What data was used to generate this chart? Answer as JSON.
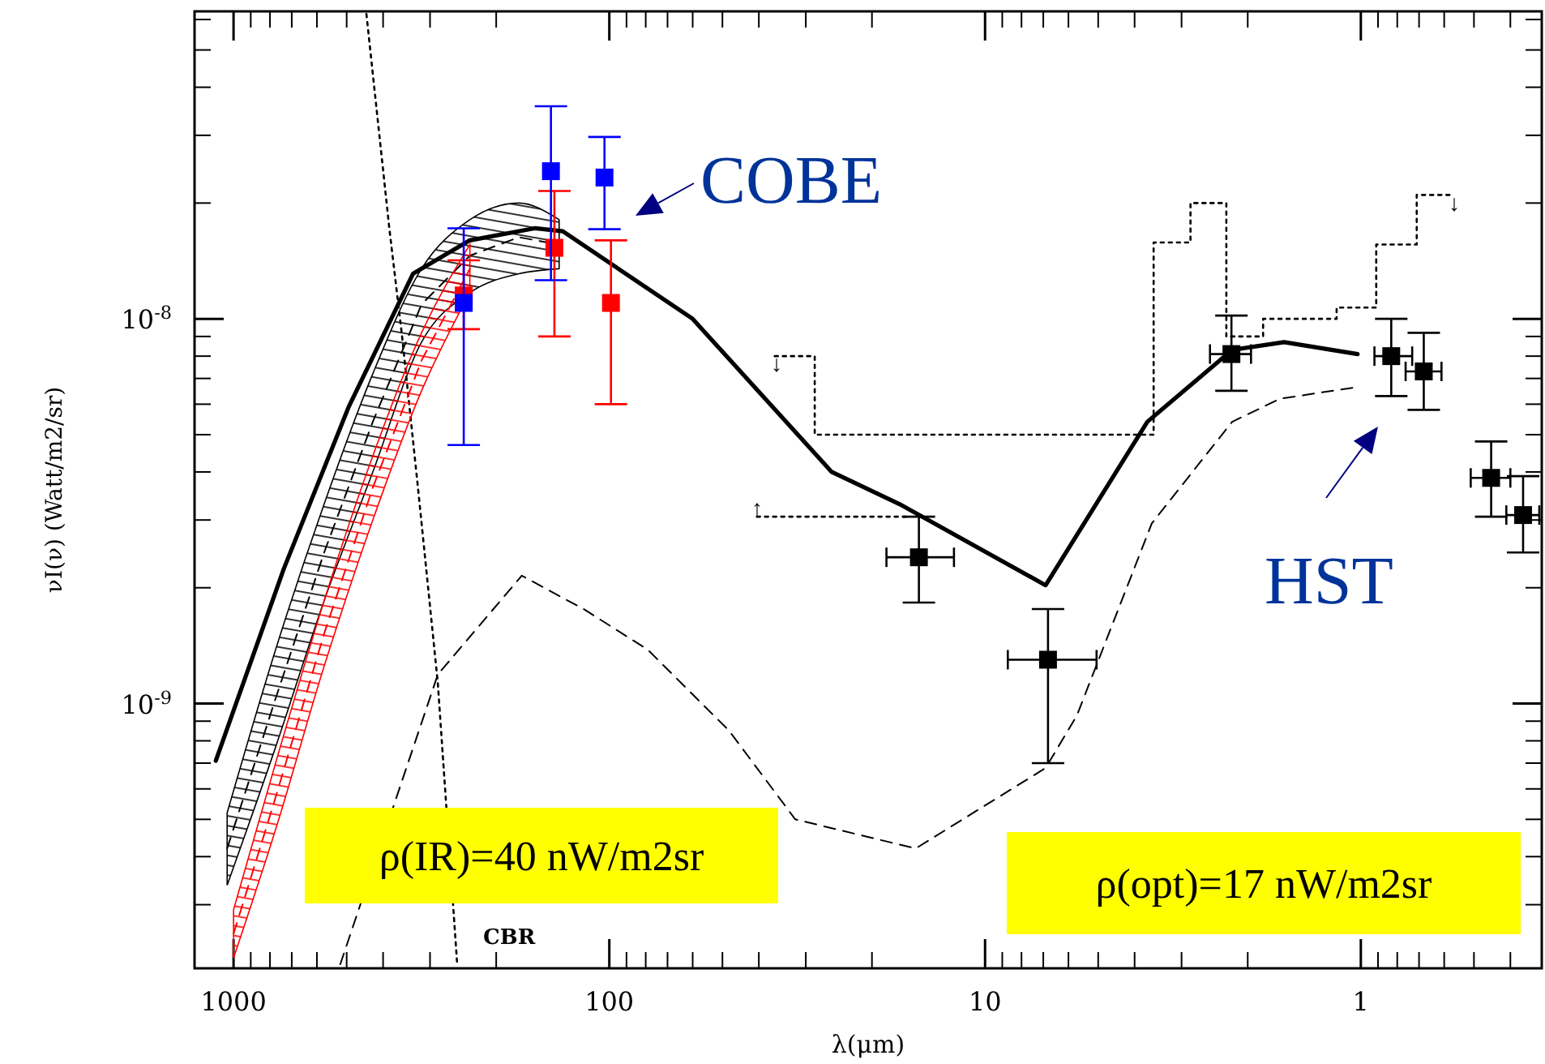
{
  "chart_data": {
    "type": "line",
    "xlabel": "λ(μm)",
    "ylabel": "νI(ν) (Watt/m2/sr)",
    "log": "xy",
    "xlim": [
      1270,
      0.33
    ],
    "ylim": [
      2.05e-10,
      6.3e-08
    ],
    "xticks": [
      1000,
      {
        "value": 900,
        "label": null
      },
      {
        "value": 800,
        "label": null
      },
      {
        "value": 700,
        "label": null
      },
      {
        "value": 600,
        "label": null
      },
      {
        "value": 500,
        "label": null
      },
      {
        "value": 400,
        "label": null
      },
      {
        "value": 300,
        "label": null
      },
      {
        "value": 200,
        "label": null
      },
      100,
      {
        "value": 90,
        "label": null
      },
      {
        "value": 80,
        "label": null
      },
      {
        "value": 70,
        "label": null
      },
      {
        "value": 60,
        "label": null
      },
      {
        "value": 50,
        "label": null
      },
      {
        "value": 40,
        "label": null
      },
      {
        "value": 30,
        "label": null
      },
      {
        "value": 20,
        "label": null
      },
      10,
      {
        "value": 9,
        "label": null
      },
      {
        "value": 8,
        "label": null
      },
      {
        "value": 7,
        "label": null
      },
      {
        "value": 6,
        "label": null
      },
      {
        "value": 5,
        "label": null
      },
      {
        "value": 4,
        "label": null
      },
      {
        "value": 3,
        "label": null
      },
      {
        "value": 2,
        "label": null
      },
      1,
      {
        "value": 0.9,
        "label": null
      },
      {
        "value": 0.8,
        "label": null
      },
      {
        "value": 0.7,
        "label": null
      },
      {
        "value": 0.6,
        "label": null
      },
      {
        "value": 0.5,
        "label": null
      },
      {
        "value": 0.4,
        "label": null
      }
    ],
    "yticks": [
      {
        "value": 3e-10,
        "label": null
      },
      {
        "value": 4e-10,
        "label": null
      },
      {
        "value": 5e-10,
        "label": null
      },
      {
        "value": 6e-10,
        "label": null
      },
      {
        "value": 7e-10,
        "label": null
      },
      {
        "value": 8e-10,
        "label": null
      },
      {
        "value": 9e-10,
        "label": null
      },
      {
        "value": 1e-09,
        "label": "10$^{-9}$"
      },
      {
        "value": 2e-09,
        "label": null
      },
      {
        "value": 3e-09,
        "label": null
      },
      {
        "value": 4e-09,
        "label": null
      },
      {
        "value": 5e-09,
        "label": null
      },
      {
        "value": 6e-09,
        "label": null
      },
      {
        "value": 7e-09,
        "label": null
      },
      {
        "value": 8e-09,
        "label": null
      },
      {
        "value": 9e-09,
        "label": null
      },
      {
        "value": 1e-08,
        "label": "10$^{-8}$"
      },
      {
        "value": 2e-08,
        "label": null
      },
      {
        "value": 3e-08,
        "label": null
      },
      {
        "value": 4e-08,
        "label": null
      },
      {
        "value": 5e-08,
        "label": null
      },
      {
        "value": 6e-08,
        "label": null
      }
    ],
    "series": [
      {
        "type": "line",
        "color": "#000000",
        "line_style": "solid",
        "x": [
          1115,
          735,
          494,
          333,
          235,
          158,
          133,
          60,
          25.6,
          16.9,
          6.9,
          3.7,
          2.2,
          1.6,
          1.02
        ],
        "values": [
          7.1e-10,
          2.24e-09,
          5.9e-09,
          1.31e-08,
          1.6e-08,
          1.72e-08,
          1.69e-08,
          1e-08,
          4e-09,
          3.3e-09,
          2.03e-09,
          5.4e-09,
          8.3e-09,
          8.7e-09,
          8.1e-09
        ]
      },
      {
        "type": "line",
        "color": "#000000",
        "line_style": "dashed",
        "x": [
          520,
          385,
          286,
          171,
          117,
          79,
          48,
          32,
          15.3,
          6.9,
          5.7,
          3.6,
          2.2,
          1.64,
          1.02
        ],
        "values": [
          2.1e-10,
          null,
          1.19e-09,
          2.15e-09,
          1.76e-09,
          1.38e-09,
          8.5e-10,
          5e-10,
          4.2e-10,
          6.8e-10,
          9.3e-10,
          2.94e-09,
          5.4e-09,
          6.2e-09,
          6.65e-09
        ]
      },
      {
        "type": "line",
        "color": "#000000",
        "line_style": "dotted",
        "x": [
          443,
          385,
          356,
          323,
          286,
          254
        ],
        "values": [
          6.2e-08,
          1.72e-08,
          9e-09,
          3.64e-09,
          1.13e-09,
          2.1e-10
        ]
      },
      {
        "type": "step",
        "color": "#000000",
        "line_style": "dotted",
        "x": [
          36.3,
          28.4,
          3.56,
          2.84,
          2.28,
          1.82,
          1.16,
          0.91,
          0.71,
          0.57
        ],
        "values": [
          8e-09,
          5e-09,
          1.58e-08,
          2e-08,
          9e-09,
          1e-08,
          1.07e-08,
          1.56e-08,
          2.1e-08,
          2.1e-08
        ]
      },
      {
        "type": "line",
        "color": "#000000",
        "line_style": "dotted",
        "x": [
          40.5,
          16.1
        ],
        "values": [
          3.06e-09,
          3.06e-09
        ]
      },
      {
        "type": "line",
        "color": "#000000",
        "line_style": "dashed",
        "x": [
          1040,
          773,
          574,
          426,
          316,
          235,
          174,
          136
        ],
        "values": [
          4.2e-10,
          1.03e-09,
          2.47e-09,
          5.4e-09,
          1.09e-08,
          1.46e-08,
          1.63e-08,
          1.56e-08
        ],
        "lower": [
          3.37e-10,
          7.7e-10,
          1.85e-09,
          4e-09,
          8.7e-09,
          1.17e-08,
          1.31e-08,
          1.35e-08
        ],
        "upper": [
          5.2e-10,
          1.38e-09,
          3.3e-09,
          7.2e-09,
          1.35e-08,
          1.81e-08,
          2e-08,
          1.81e-08
        ]
      },
      {
        "type": "line",
        "color": "#ff0000",
        "line_style": "dashed",
        "x": [
          1000,
          773,
          574,
          426,
          316,
          235
        ],
        "values": [
          2.52e-10,
          5.7e-10,
          1.52e-09,
          3.64e-09,
          7.8e-09,
          1.35e-08
        ],
        "lower": [
          2.18e-10,
          4.7e-10,
          1.25e-09,
          3e-09,
          6.5e-09,
          1.17e-08
        ],
        "upper": [
          2.91e-10,
          7e-10,
          1.85e-09,
          4.4e-09,
          9.2e-09,
          1.56e-08
        ]
      },
      {
        "type": "scatter",
        "color": "#0000ff",
        "marker": "square",
        "x": [
          244,
          143,
          103
        ],
        "values": [
          1.1e-08,
          2.42e-08,
          2.33e-08
        ],
        "errors": [
          [
            4.7e-09,
            1.72e-08
          ],
          [
            1.26e-08,
            3.57e-08
          ],
          [
            1.71e-08,
            2.97e-08
          ]
        ]
      },
      {
        "type": "scatter",
        "color": "#ff0000",
        "marker": "square",
        "x": [
          244,
          140,
          99
        ],
        "values": [
          1.15e-08,
          1.53e-08,
          1.1e-08
        ],
        "errors": [
          [
            9.4e-09,
            1.42e-08
          ],
          [
            9e-09,
            2.15e-08
          ],
          [
            6e-09,
            1.6e-08
          ]
        ]
      },
      {
        "type": "scatter",
        "color": "#000000",
        "marker": "square",
        "x": [
          15.0,
          6.8
        ],
        "values": [
          2.4e-09,
          1.3e-09
        ],
        "errors": [
          [
            1.83e-09,
            3.06e-09
          ],
          [
            7e-10,
            1.76e-09
          ]
        ],
        "xerrors": [
          [
            18.3,
            12.1
          ],
          [
            8.7,
            5.05
          ]
        ]
      },
      {
        "type": "scatter",
        "color": "#000000",
        "marker": "square",
        "x": [
          2.21,
          0.83,
          0.68,
          0.45,
          0.37
        ],
        "values": [
          8.1e-09,
          8e-09,
          7.3e-09,
          3.86e-09,
          3.09e-09
        ],
        "errors": [
          [
            6.5e-09,
            1.02e-08
          ],
          [
            6.3e-09,
            1e-08
          ],
          [
            5.8e-09,
            9.2e-09
          ],
          [
            3.06e-09,
            4.8e-09
          ],
          [
            2.47e-09,
            3.9e-09
          ]
        ],
        "xerrors": [
          [
            2.52,
            1.96
          ],
          [
            0.92,
            0.73
          ],
          [
            0.76,
            0.61
          ],
          [
            0.51,
            0.4
          ],
          [
            0.41,
            0.335
          ]
        ]
      }
    ],
    "annotations": [
      "COBE",
      "HST",
      "CBR",
      "↓",
      "↓",
      "↑",
      "ρ(IR)=40 nW/m2sr",
      "ρ(opt)=17 nW/m2sr"
    ]
  }
}
